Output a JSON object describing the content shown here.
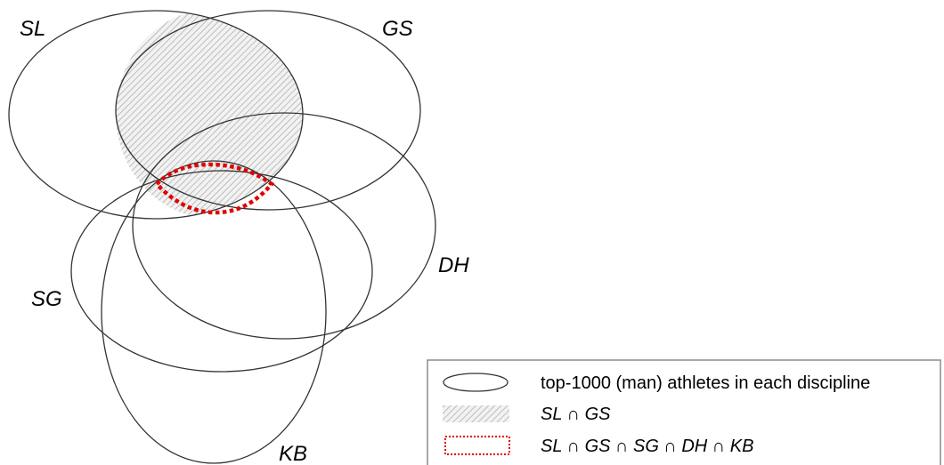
{
  "sets": {
    "sl": "SL",
    "gs": "GS",
    "dh": "DH",
    "sg": "SG",
    "kb": "KB"
  },
  "legend": {
    "items": [
      {
        "symbol": "ellipse-outline",
        "label": "top-1000 (man) athletes in each discipline"
      },
      {
        "symbol": "hatched-box",
        "label": "SL ∩ GS"
      },
      {
        "symbol": "red-dotted-box",
        "label": "SL ∩ GS ∩ SG ∩ DH ∩ KB"
      }
    ]
  },
  "colors": {
    "outline": "#333333",
    "hatch": "#b0b0b0",
    "hatch_bg": "#f2f2f2",
    "intersection_border": "#e00000",
    "legend_border": "#8c8c8c"
  }
}
